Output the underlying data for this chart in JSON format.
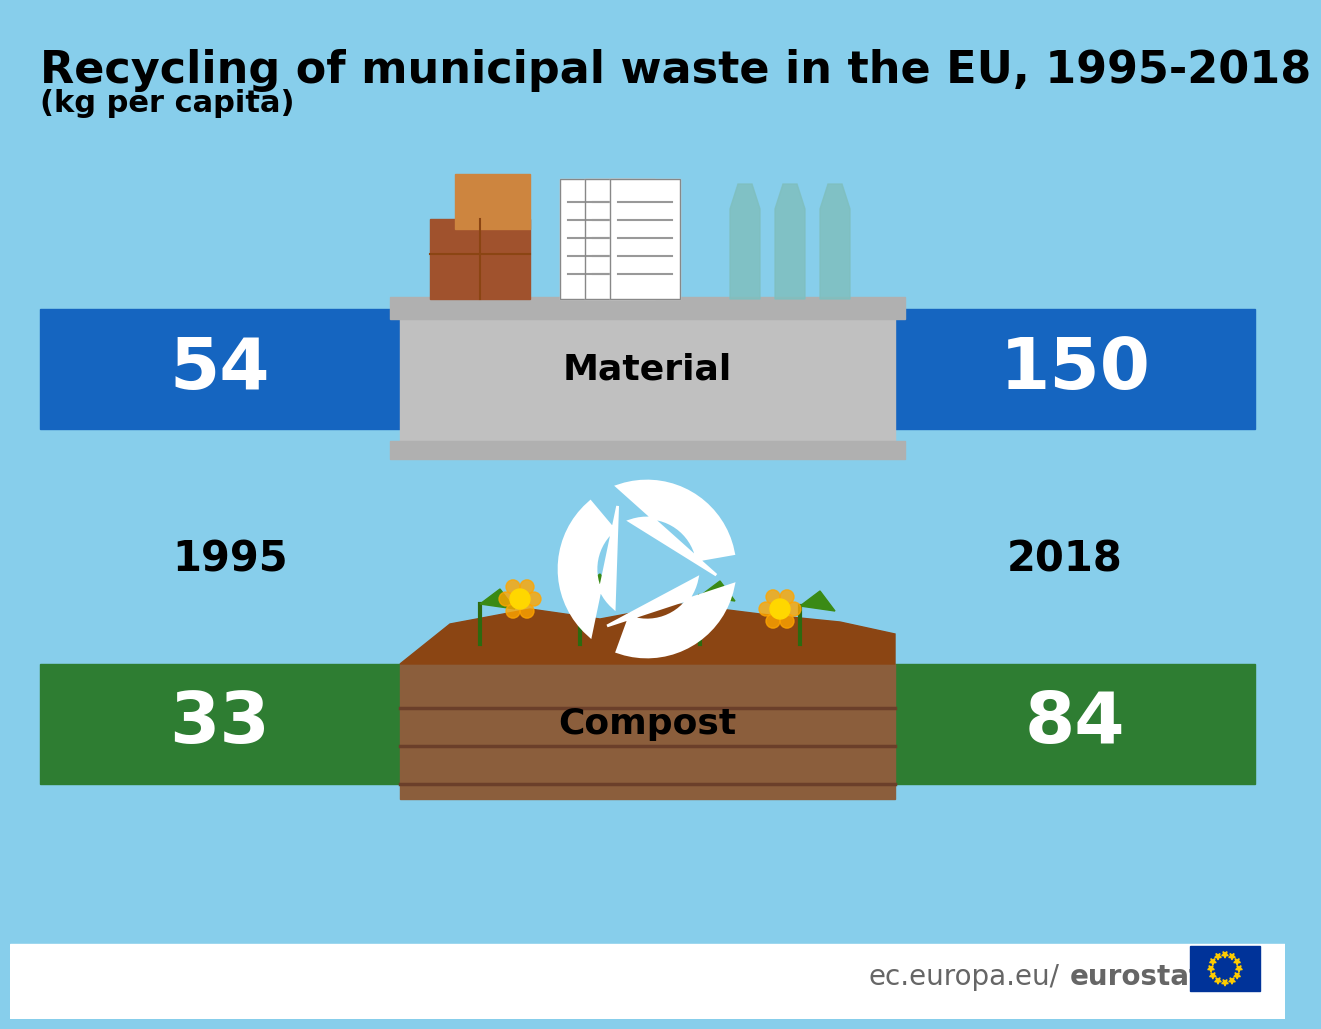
{
  "title": "Recycling of municipal waste in the EU, 1995-2018",
  "subtitle": "(kg per capita)",
  "bg_color": "#87CEEB",
  "footer_bg": "#FFFFFF",
  "blue_bar_color": "#1565C0",
  "green_bar_color": "#2E7D32",
  "material_box_color": "#C8C8C8",
  "compost_box_color": "#8B5E3C",
  "year_1995": "1995",
  "year_2018": "2018",
  "material_label": "Material",
  "compost_label": "Compost",
  "material_value_1995": "54",
  "material_value_2018": "150",
  "compost_value_1995": "33",
  "compost_value_2018": "84",
  "footer_text_light": "ec.europa.eu/",
  "footer_text_bold": "eurostat",
  "eu_flag_blue": "#003399",
  "eu_flag_yellow": "#FFCC00"
}
